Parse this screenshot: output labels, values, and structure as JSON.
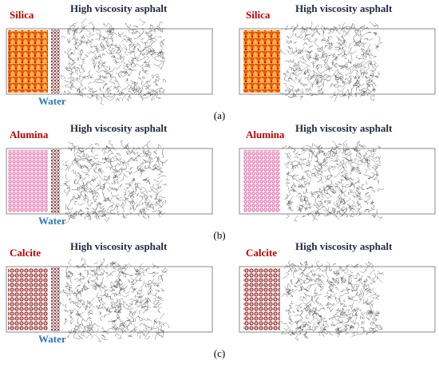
{
  "panels": [
    {
      "label": "(a)",
      "left": {
        "mineral": "Silica",
        "asphalt": "High viscosity asphalt",
        "water": "Water"
      },
      "right": {
        "mineral": "Silica",
        "asphalt": "High viscosity asphalt"
      }
    },
    {
      "label": "(b)",
      "left": {
        "mineral": "Alumina",
        "asphalt": "High viscosity asphalt",
        "water": "Water"
      },
      "right": {
        "mineral": "Alumina",
        "asphalt": "High viscosity asphalt"
      }
    },
    {
      "label": "(c)",
      "left": {
        "mineral": "Calcite",
        "asphalt": "High viscosity asphalt",
        "water": "Water"
      },
      "right": {
        "mineral": "Calcite",
        "asphalt": "High viscosity asphalt"
      }
    }
  ]
}
